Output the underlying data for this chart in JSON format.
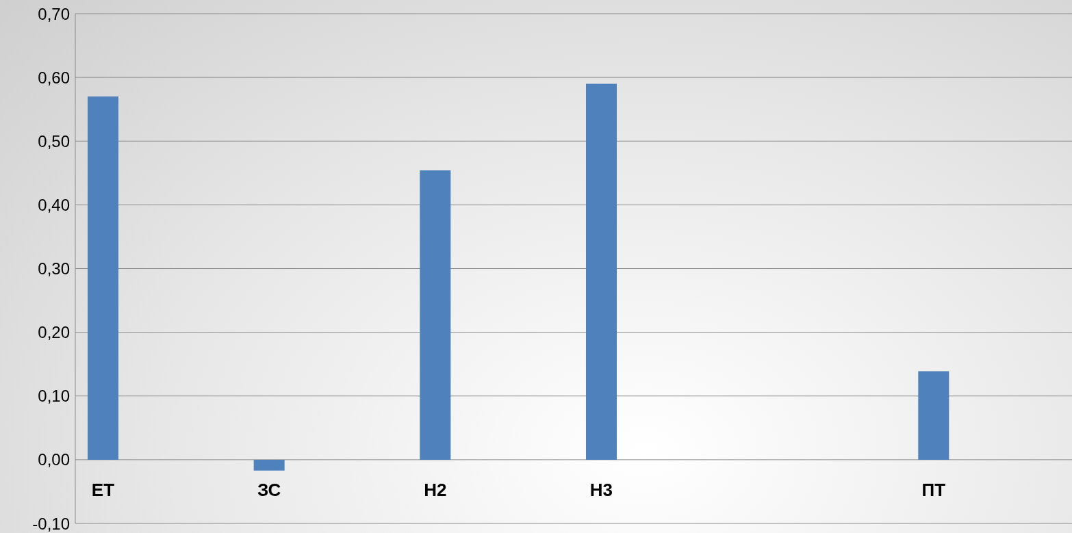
{
  "chart_data": {
    "type": "bar",
    "categories": [
      "ЕТ",
      null,
      null,
      "ЗС",
      null,
      null,
      "Н2",
      null,
      null,
      "Н3",
      null,
      null,
      null,
      null,
      null,
      "ПТ",
      null,
      null
    ],
    "values": [
      0.57,
      null,
      null,
      -0.017,
      null,
      null,
      0.454,
      null,
      null,
      0.59,
      null,
      null,
      null,
      null,
      null,
      0.139,
      null,
      null
    ],
    "color": "#4f81bd",
    "ylim": [
      -0.1,
      0.7
    ],
    "yticks": [
      {
        "value": -0.1,
        "label": "-0,10"
      },
      {
        "value": 0,
        "label": "0,00"
      },
      {
        "value": 0.1,
        "label": "0,10"
      },
      {
        "value": 0.2,
        "label": "0,20"
      },
      {
        "value": 0.3,
        "label": "0,30"
      },
      {
        "value": 0.4,
        "label": "0,40"
      },
      {
        "value": 0.5,
        "label": "0,50"
      },
      {
        "value": 0.6,
        "label": "0,60"
      },
      {
        "value": 0.7,
        "label": "0,70"
      }
    ],
    "grid": "y",
    "legend": false
  }
}
